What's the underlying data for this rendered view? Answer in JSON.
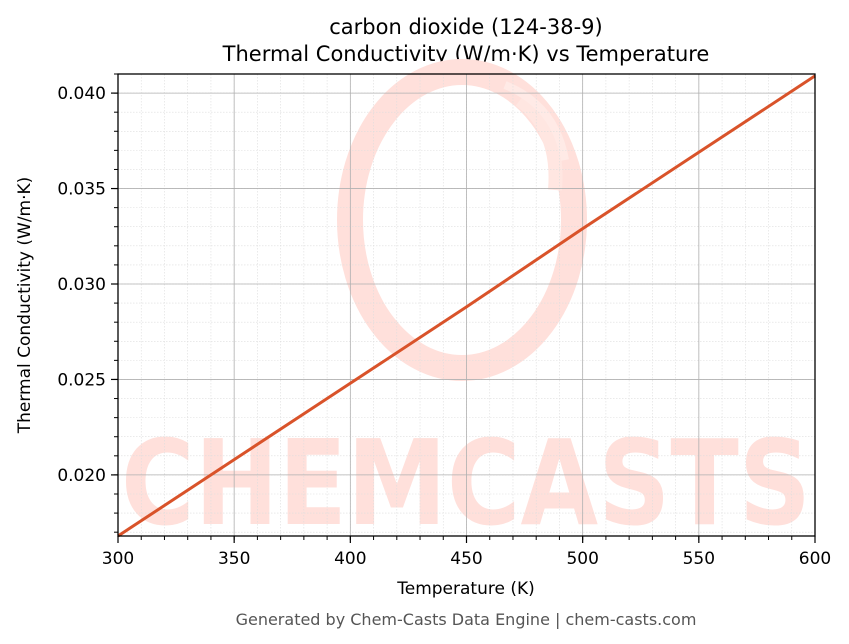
{
  "colors": {
    "line": "#d9532a",
    "grid_major": "#b0b0b0",
    "grid_minor": "#dddddd",
    "watermark": "#ffe0db",
    "footer_text": "#555555"
  },
  "watermark": {
    "text": "CHEMCASTS",
    "icon": "chemcasts-swirl-logo"
  },
  "footer": {
    "text": "Generated by Chem-Casts Data Engine | chem-casts.com"
  },
  "chart_data": {
    "type": "line",
    "title_line1": "carbon dioxide (124-38-9)",
    "title_line2": "Thermal Conductivity (W/m·K) vs Temperature",
    "xlabel": "Temperature (K)",
    "ylabel": "Thermal Conductivity (W/m·K)",
    "xlim": [
      300,
      600
    ],
    "ylim": [
      0.0168,
      0.041
    ],
    "xticks": [
      300,
      350,
      400,
      450,
      500,
      550,
      600
    ],
    "xtick_labels": [
      "300",
      "350",
      "400",
      "450",
      "500",
      "550",
      "600"
    ],
    "yticks": [
      0.02,
      0.025,
      0.03,
      0.035,
      0.04
    ],
    "ytick_labels": [
      "0.020",
      "0.025",
      "0.030",
      "0.035",
      "0.040"
    ],
    "grid": true,
    "minor_grid": true,
    "series": [
      {
        "x": [
          300,
          350,
          400,
          450,
          500,
          550,
          600
        ],
        "y": [
          0.0168,
          0.0208,
          0.0248,
          0.0288,
          0.0329,
          0.0369,
          0.0409
        ]
      }
    ]
  }
}
